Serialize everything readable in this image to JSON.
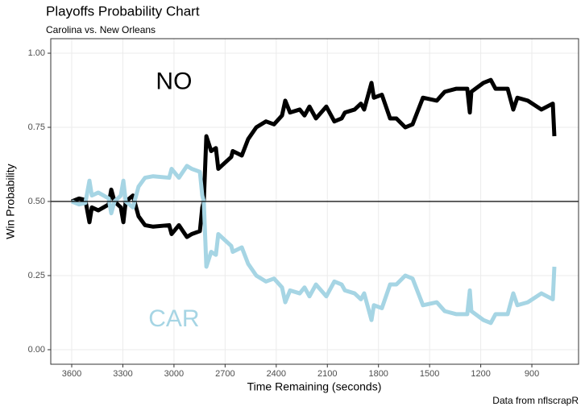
{
  "chart_data": {
    "type": "line",
    "title": "Playoffs Probability Chart",
    "subtitle": "Carolina vs. New Orleans",
    "x_label": "Time Remaining (seconds)",
    "y_label": "Win Probability",
    "caption": "Data from nflscrapR",
    "x": [
      3600,
      3557,
      3520,
      3496,
      3482,
      3444,
      3383,
      3368,
      3349,
      3312,
      3297,
      3283,
      3241,
      3208,
      3170,
      3122,
      3028,
      3014,
      2971,
      2924,
      2896,
      2848,
      2834,
      2825,
      2810,
      2782,
      2754,
      2740,
      2664,
      2655,
      2602,
      2565,
      2517,
      2460,
      2413,
      2366,
      2347,
      2319,
      2262,
      2234,
      2205,
      2167,
      2106,
      2059,
      2016,
      1997,
      1940,
      1903,
      1884,
      1841,
      1827,
      1780,
      1732,
      1695,
      1643,
      1600,
      1539,
      1458,
      1411,
      1345,
      1279,
      1264,
      1255,
      1184,
      1141,
      1113,
      1042,
      1009,
      985,
      924,
      844,
      777,
      768
    ],
    "series": [
      {
        "name": "NO",
        "color": "#000000",
        "label_x": 3000,
        "label_y": 0.9,
        "values": [
          0.5,
          0.51,
          0.505,
          0.43,
          0.48,
          0.47,
          0.49,
          0.54,
          0.5,
          0.48,
          0.43,
          0.5,
          0.52,
          0.45,
          0.42,
          0.415,
          0.42,
          0.39,
          0.42,
          0.38,
          0.39,
          0.4,
          0.48,
          0.5,
          0.72,
          0.67,
          0.68,
          0.61,
          0.65,
          0.67,
          0.655,
          0.71,
          0.75,
          0.77,
          0.76,
          0.79,
          0.84,
          0.8,
          0.81,
          0.79,
          0.82,
          0.78,
          0.82,
          0.77,
          0.78,
          0.8,
          0.81,
          0.83,
          0.81,
          0.9,
          0.85,
          0.86,
          0.78,
          0.78,
          0.75,
          0.76,
          0.85,
          0.84,
          0.87,
          0.88,
          0.88,
          0.8,
          0.87,
          0.9,
          0.91,
          0.88,
          0.88,
          0.81,
          0.85,
          0.84,
          0.81,
          0.83,
          0.72
        ]
      },
      {
        "name": "CAR",
        "color": "#a6d5e4",
        "label_x": 3000,
        "label_y": 0.1,
        "values": [
          0.5,
          0.49,
          0.495,
          0.57,
          0.52,
          0.53,
          0.51,
          0.46,
          0.5,
          0.52,
          0.57,
          0.5,
          0.48,
          0.55,
          0.58,
          0.585,
          0.58,
          0.61,
          0.58,
          0.62,
          0.61,
          0.6,
          0.52,
          0.5,
          0.28,
          0.33,
          0.32,
          0.39,
          0.35,
          0.33,
          0.345,
          0.29,
          0.25,
          0.23,
          0.24,
          0.21,
          0.16,
          0.2,
          0.19,
          0.21,
          0.18,
          0.22,
          0.18,
          0.23,
          0.22,
          0.2,
          0.19,
          0.17,
          0.19,
          0.1,
          0.15,
          0.14,
          0.22,
          0.22,
          0.25,
          0.24,
          0.15,
          0.16,
          0.13,
          0.12,
          0.12,
          0.2,
          0.13,
          0.1,
          0.09,
          0.12,
          0.12,
          0.19,
          0.15,
          0.16,
          0.19,
          0.17,
          0.28
        ]
      }
    ],
    "hline": 0.5,
    "xlim": [
      3723,
      626
    ],
    "ylim": [
      -0.049,
      1.049
    ],
    "xticks": [
      3600,
      3300,
      3000,
      2700,
      2400,
      2100,
      1800,
      1500,
      1200,
      900
    ],
    "yticks": [
      {
        "value": 0,
        "label": "0.00"
      },
      {
        "value": 0.25,
        "label": "0.25"
      },
      {
        "value": 0.5,
        "label": "0.50"
      },
      {
        "value": 0.75,
        "label": "0.75"
      },
      {
        "value": 1,
        "label": "1.00"
      }
    ],
    "grid": true
  }
}
